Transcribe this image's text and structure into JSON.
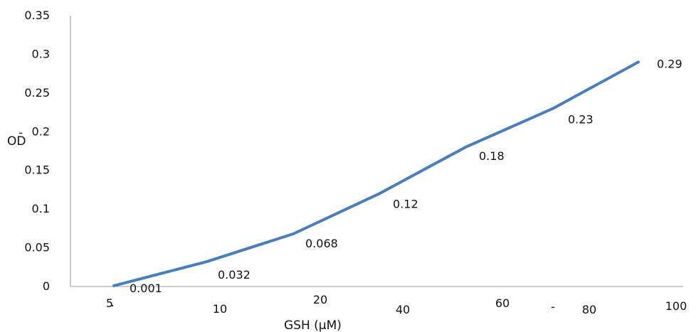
{
  "chart_data": {
    "type": "line",
    "title": "",
    "xlabel": "GSH (µM)",
    "ylabel": "OD",
    "x_tick_labels": [
      "5",
      "10",
      "20",
      "40",
      "60",
      "80",
      "100"
    ],
    "y_tick_labels": [
      "0",
      "0.05",
      "0.1",
      "0.15",
      "0.2",
      "0.25",
      "0.3",
      "0.35"
    ],
    "ylim": [
      0,
      0.35
    ],
    "grid": false,
    "legend": "none",
    "series": [
      {
        "values": [
          0.001,
          0.032,
          0.068,
          0.12,
          0.18,
          0.23,
          0.29
        ],
        "labels": [
          "0.001",
          "0.032",
          "0.068",
          "0.12",
          "0.18",
          "0.23",
          "0.29"
        ],
        "color": "#4a7ebb"
      }
    ],
    "stray_marks": [
      ".",
      "-",
      "-"
    ]
  }
}
